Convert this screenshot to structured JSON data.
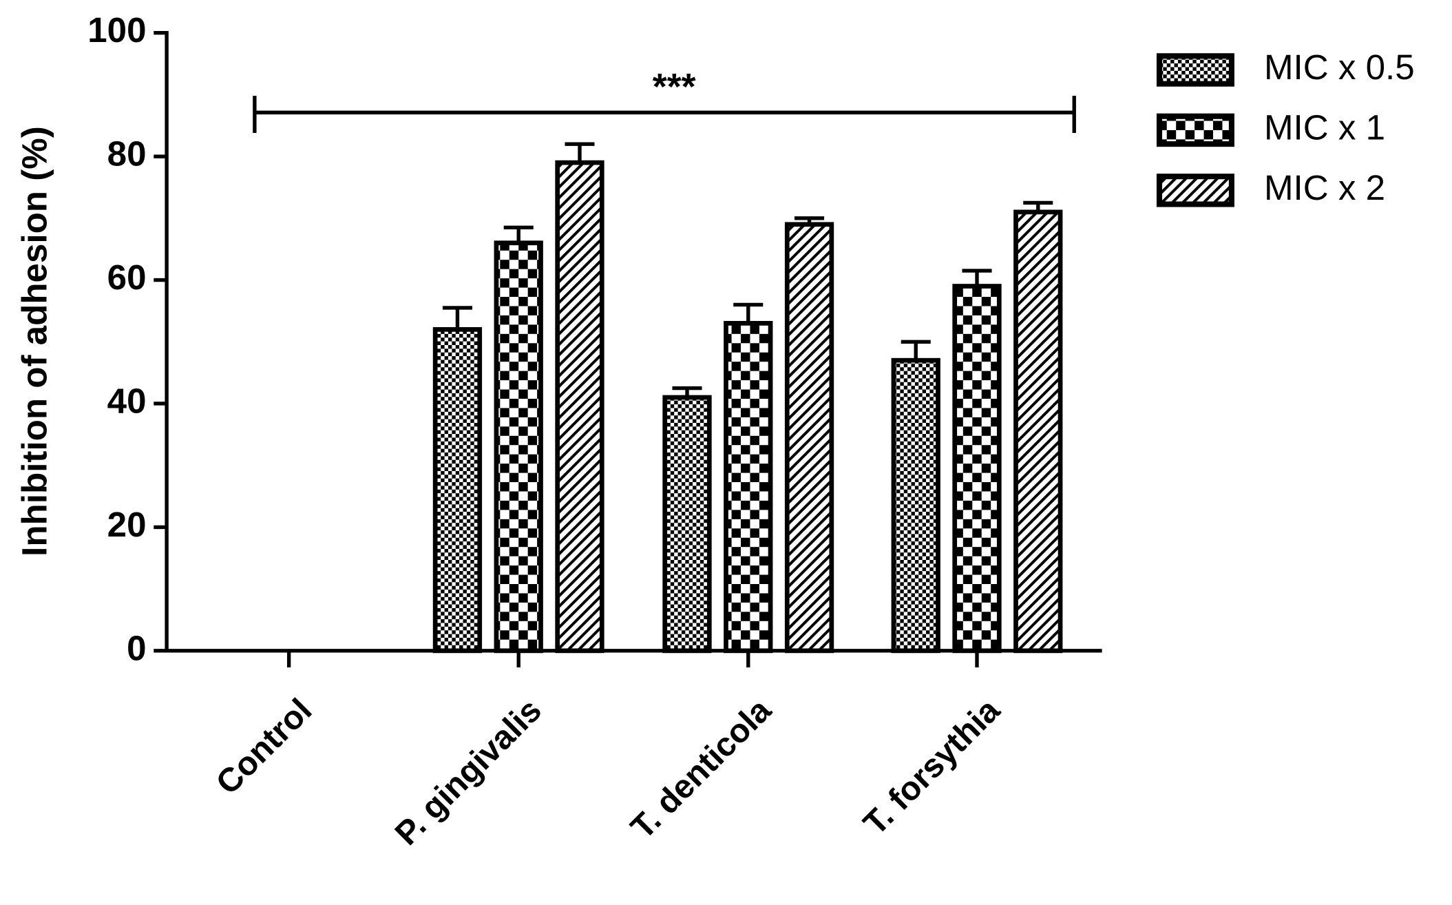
{
  "chart_data": {
    "type": "bar",
    "y_label": "Inhibition of adhesion (%)",
    "categories": [
      "Control",
      "P. gingivalis",
      "T. denticola",
      "T. forsythia"
    ],
    "series": [
      {
        "name": "MIC x 0.5",
        "color": "#000000",
        "pattern": "fine-checker",
        "values": [
          0,
          52,
          41,
          47
        ],
        "errors": [
          0,
          3.5,
          1.5,
          3
        ]
      },
      {
        "name": "MIC x 1",
        "color": "#000000",
        "pattern": "checker",
        "values": [
          0,
          66,
          53,
          59
        ],
        "errors": [
          0,
          2.5,
          3,
          2.5
        ]
      },
      {
        "name": "MIC x 2",
        "color": "#000000",
        "pattern": "diagonal",
        "values": [
          0,
          79,
          69,
          71
        ],
        "errors": [
          0,
          3,
          1,
          1.5
        ]
      }
    ],
    "ylim": [
      0,
      100
    ],
    "yticks": [
      0,
      20,
      40,
      60,
      80,
      100
    ],
    "annotation": "***",
    "legend": "top-right"
  }
}
